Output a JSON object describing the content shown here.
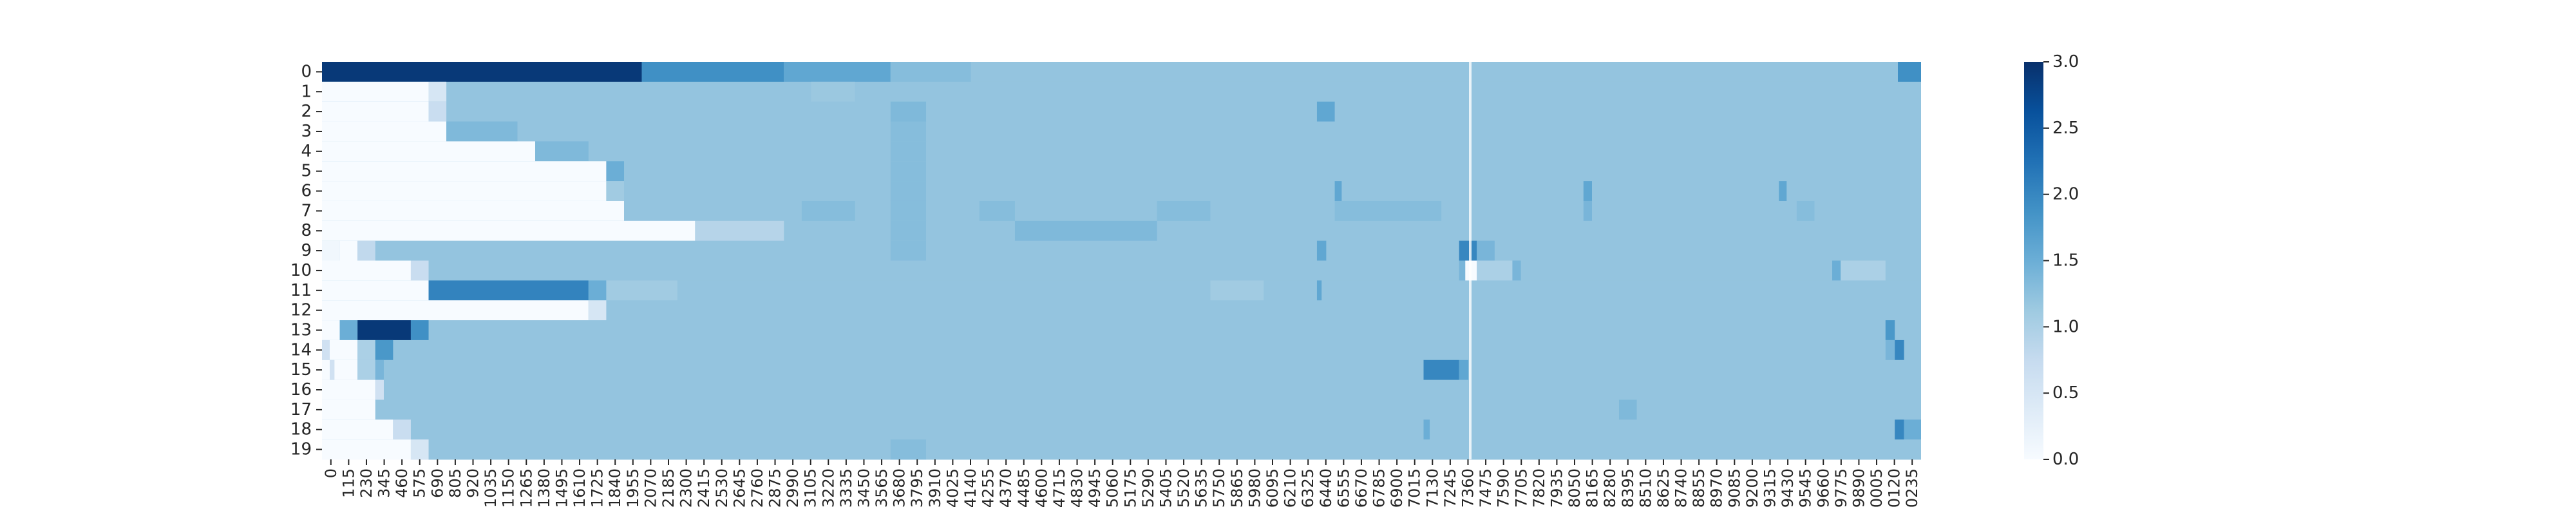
{
  "chart_data": {
    "type": "heatmap",
    "title": "",
    "xlabel": "",
    "ylabel": "",
    "colormap": "Blues",
    "colorbar": {
      "min": 0,
      "max": 3,
      "ticks": [
        "0.0",
        "0.5",
        "1.0",
        "1.5",
        "2.0",
        "2.5",
        "3.0"
      ],
      "stops": [
        "#f7fbff",
        "#deebf7",
        "#c6dbef",
        "#9ecae1",
        "#6baed6",
        "#4292c6",
        "#2171b5",
        "#08519c",
        "#08306b"
      ]
    },
    "y_labels": [
      "0",
      "1",
      "2",
      "3",
      "4",
      "5",
      "6",
      "7",
      "8",
      "9",
      "10",
      "11",
      "12",
      "13",
      "14",
      "15",
      "16",
      "17",
      "18",
      "19"
    ],
    "x_tick_labels": [
      "0",
      "115",
      "230",
      "345",
      "460",
      "575",
      "690",
      "805",
      "920",
      "1035",
      "1150",
      "1265",
      "1380",
      "1495",
      "1610",
      "1725",
      "1840",
      "1955",
      "2070",
      "2185",
      "2300",
      "2415",
      "2530",
      "2645",
      "2760",
      "2875",
      "2990",
      "3105",
      "3220",
      "3335",
      "3450",
      "3565",
      "3680",
      "3795",
      "3910",
      "4025",
      "4140",
      "4255",
      "4370",
      "4485",
      "4600",
      "4715",
      "4830",
      "4945",
      "5060",
      "5175",
      "5290",
      "5405",
      "5520",
      "5635",
      "5750",
      "5865",
      "5980",
      "6095",
      "6210",
      "6325",
      "6440",
      "6555",
      "6670",
      "6785",
      "6900",
      "7015",
      "7130",
      "7245",
      "7360",
      "7475",
      "7590",
      "7705",
      "7820",
      "7935",
      "8050",
      "8165",
      "8280",
      "8395",
      "8510",
      "8625",
      "8740",
      "8855",
      "8970",
      "9085",
      "9200",
      "9315",
      "9430",
      "9545",
      "9660",
      "9775",
      "9890",
      "0005",
      "0120",
      "0235"
    ],
    "x_tick_step": 115,
    "x_max": 10350,
    "background_value": 1.2,
    "rows": [
      [
        [
          0,
          2070,
          2.9
        ],
        [
          2070,
          2990,
          1.9
        ],
        [
          2990,
          3680,
          1.6
        ],
        [
          3680,
          4200,
          1.3
        ],
        [
          10200,
          10350,
          1.9
        ]
      ],
      [
        [
          0,
          690,
          0
        ],
        [
          690,
          805,
          0.5
        ],
        [
          3165,
          3450,
          1.15
        ]
      ],
      [
        [
          0,
          690,
          0
        ],
        [
          690,
          805,
          0.7
        ],
        [
          3680,
          3910,
          1.35
        ],
        [
          6440,
          6555,
          1.6
        ]
      ],
      [
        [
          0,
          805,
          0
        ],
        [
          805,
          1265,
          1.35
        ],
        [
          3680,
          3910,
          1.3
        ]
      ],
      [
        [
          0,
          1380,
          0
        ],
        [
          1380,
          1725,
          1.35
        ],
        [
          3680,
          3910,
          1.3
        ]
      ],
      [
        [
          0,
          1840,
          0
        ],
        [
          1840,
          1955,
          1.5
        ],
        [
          3680,
          3910,
          1.3
        ]
      ],
      [
        [
          0,
          1840,
          0
        ],
        [
          1840,
          1955,
          1.1
        ],
        [
          3680,
          3910,
          1.3
        ],
        [
          6555,
          6600,
          1.6
        ],
        [
          8165,
          8220,
          1.6
        ],
        [
          9430,
          9480,
          1.6
        ]
      ],
      [
        [
          0,
          1955,
          0
        ],
        [
          3105,
          3450,
          1.3
        ],
        [
          3680,
          3910,
          1.3
        ],
        [
          4255,
          4485,
          1.3
        ],
        [
          5405,
          5750,
          1.3
        ],
        [
          6555,
          7245,
          1.3
        ],
        [
          8165,
          8220,
          1.4
        ],
        [
          9545,
          9660,
          1.3
        ]
      ],
      [
        [
          0,
          2415,
          0
        ],
        [
          2415,
          2990,
          0.9
        ],
        [
          3680,
          3910,
          1.3
        ],
        [
          4485,
          5405,
          1.35
        ]
      ],
      [
        [
          0,
          115,
          0.1
        ],
        [
          115,
          230,
          0
        ],
        [
          230,
          345,
          0.8
        ],
        [
          3680,
          3910,
          1.3
        ],
        [
          6440,
          6500,
          1.6
        ],
        [
          7360,
          7475,
          2.0
        ],
        [
          7475,
          7590,
          1.4
        ]
      ],
      [
        [
          0,
          575,
          0
        ],
        [
          575,
          690,
          0.7
        ],
        [
          7360,
          7400,
          1.4
        ],
        [
          7400,
          7475,
          0
        ],
        [
          7475,
          7705,
          1.0
        ],
        [
          7705,
          7760,
          1.4
        ],
        [
          9775,
          9830,
          1.5
        ],
        [
          9830,
          10120,
          1.0
        ]
      ],
      [
        [
          0,
          690,
          0
        ],
        [
          690,
          1725,
          2.05
        ],
        [
          1725,
          1840,
          1.5
        ],
        [
          1840,
          2300,
          1.1
        ],
        [
          5750,
          6095,
          1.1
        ],
        [
          6440,
          6470,
          1.6
        ]
      ],
      [
        [
          0,
          1725,
          0
        ],
        [
          1725,
          1840,
          0.5
        ]
      ],
      [
        [
          0,
          115,
          0
        ],
        [
          115,
          230,
          1.5
        ],
        [
          230,
          575,
          2.9
        ],
        [
          575,
          690,
          1.9
        ],
        [
          10120,
          10180,
          1.8
        ]
      ],
      [
        [
          0,
          50,
          0.6
        ],
        [
          50,
          230,
          0
        ],
        [
          230,
          345,
          1.0
        ],
        [
          345,
          460,
          1.8
        ],
        [
          10120,
          10180,
          1.4
        ],
        [
          10180,
          10240,
          2.0
        ]
      ],
      [
        [
          0,
          50,
          0
        ],
        [
          50,
          80,
          0.6
        ],
        [
          80,
          230,
          0
        ],
        [
          230,
          345,
          1.0
        ],
        [
          345,
          400,
          1.4
        ],
        [
          7130,
          7360,
          2.0
        ],
        [
          7360,
          7420,
          1.6
        ]
      ],
      [
        [
          0,
          345,
          0
        ],
        [
          345,
          400,
          0.6
        ]
      ],
      [
        [
          0,
          345,
          0
        ],
        [
          8395,
          8510,
          1.35
        ]
      ],
      [
        [
          0,
          460,
          0
        ],
        [
          460,
          575,
          0.7
        ],
        [
          7130,
          7170,
          1.5
        ],
        [
          10180,
          10240,
          2.0
        ],
        [
          10240,
          10350,
          1.5
        ]
      ],
      [
        [
          0,
          575,
          0
        ],
        [
          575,
          690,
          0.5
        ],
        [
          3680,
          3910,
          1.3
        ]
      ]
    ]
  }
}
